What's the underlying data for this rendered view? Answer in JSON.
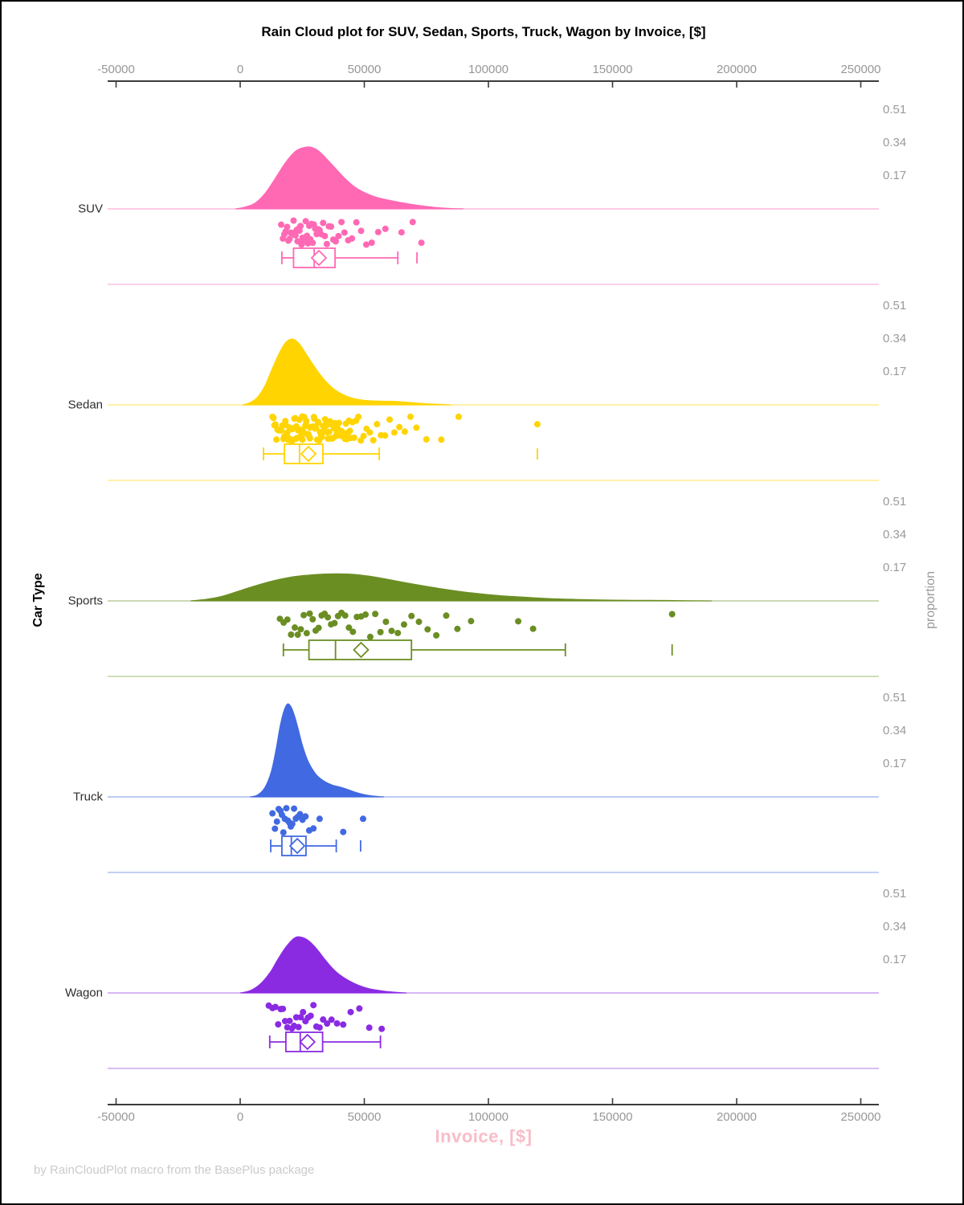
{
  "title": "Rain Cloud plot for SUV, Sedan, Sports, Truck, Wagon by Invoice, [$]",
  "footer": "by RainCloudPlot macro from the BasePlus package",
  "x_axis": {
    "label": "Invoice, [$]",
    "label_color": "#f9bcc8",
    "tick_values": [
      -50000,
      0,
      50000,
      100000,
      150000,
      200000,
      250000
    ],
    "tick_labels": [
      "-50000",
      "0",
      "50000",
      "100000",
      "150000",
      "200000",
      "250000"
    ]
  },
  "y_axis_left": {
    "label": "Car Type"
  },
  "y_axis_right": {
    "label": "proportion",
    "tick_values": [
      0.51,
      0.34,
      0.17
    ],
    "tick_labels": [
      "0.51",
      "0.34",
      "0.17"
    ]
  },
  "chart_data": {
    "type": "raincloud (half-violin density + jitter rain points + box plot) per category",
    "xlabel": "Invoice, [$]",
    "ylabel": "Car Type",
    "x_range": [
      -50000,
      250000
    ],
    "proportion_ticks_per_panel": [
      0.51,
      0.34,
      0.17
    ],
    "categories": [
      "SUV",
      "Sedan",
      "Sports",
      "Truck",
      "Wagon"
    ],
    "groups": [
      {
        "label": "SUV",
        "color": "#FF69B4",
        "density": [
          [
            -2000,
            0
          ],
          [
            2000,
            0.01
          ],
          [
            6000,
            0.03
          ],
          [
            10000,
            0.08
          ],
          [
            14000,
            0.155
          ],
          [
            18000,
            0.235
          ],
          [
            22000,
            0.295
          ],
          [
            25000,
            0.315
          ],
          [
            28000,
            0.32
          ],
          [
            31000,
            0.305
          ],
          [
            34000,
            0.27
          ],
          [
            38000,
            0.215
          ],
          [
            42000,
            0.16
          ],
          [
            46000,
            0.115
          ],
          [
            50000,
            0.085
          ],
          [
            55000,
            0.06
          ],
          [
            60000,
            0.045
          ],
          [
            65000,
            0.032
          ],
          [
            70000,
            0.022
          ],
          [
            75000,
            0.013
          ],
          [
            80000,
            0.006
          ],
          [
            85000,
            0.002
          ],
          [
            90000,
            0
          ]
        ],
        "points": [
          16500,
          17200,
          17800,
          18300,
          18900,
          19400,
          19900,
          20300,
          20700,
          21100,
          21500,
          21900,
          22300,
          22700,
          23100,
          23500,
          23900,
          24300,
          24700,
          25100,
          25500,
          26000,
          26400,
          26900,
          27300,
          27800,
          28200,
          28700,
          29200,
          29700,
          30200,
          30800,
          31400,
          32000,
          32700,
          33400,
          34100,
          34900,
          35700,
          36600,
          37500,
          38500,
          39600,
          40800,
          42000,
          43500,
          45000,
          46800,
          48700,
          50800,
          53000,
          55600,
          58500,
          65000,
          69500,
          73000
        ],
        "box": {
          "whisker_low": 16800,
          "q1": 21500,
          "median": 29800,
          "mean": 31700,
          "q3": 38200,
          "whisker_high": 63500,
          "outliers": [
            71200
          ]
        }
      },
      {
        "label": "Sedan",
        "color": "#FFD400",
        "density": [
          [
            1000,
            0
          ],
          [
            4000,
            0.012
          ],
          [
            7000,
            0.04
          ],
          [
            10000,
            0.1
          ],
          [
            13000,
            0.19
          ],
          [
            16000,
            0.275
          ],
          [
            18500,
            0.325
          ],
          [
            21000,
            0.34
          ],
          [
            23500,
            0.32
          ],
          [
            26000,
            0.275
          ],
          [
            29000,
            0.215
          ],
          [
            32000,
            0.16
          ],
          [
            35000,
            0.115
          ],
          [
            38000,
            0.08
          ],
          [
            42000,
            0.05
          ],
          [
            46000,
            0.032
          ],
          [
            50000,
            0.024
          ],
          [
            55000,
            0.02
          ],
          [
            60000,
            0.019
          ],
          [
            65000,
            0.016
          ],
          [
            70000,
            0.011
          ],
          [
            75000,
            0.006
          ],
          [
            80000,
            0.003
          ],
          [
            85000,
            0
          ]
        ],
        "points": [
          13000,
          13400,
          13800,
          14200,
          14600,
          15000,
          15400,
          15800,
          16200,
          16600,
          17000,
          17400,
          17800,
          18200,
          18600,
          19000,
          19400,
          19800,
          20200,
          20600,
          21000,
          21400,
          21800,
          22200,
          22600,
          23000,
          23400,
          23800,
          24200,
          24600,
          25000,
          25400,
          25800,
          26200,
          26600,
          27000,
          27400,
          27800,
          28200,
          28600,
          29000,
          29400,
          29800,
          30200,
          30600,
          31000,
          31400,
          31800,
          32200,
          32600,
          33000,
          33400,
          33800,
          34200,
          34600,
          35000,
          35400,
          35800,
          36200,
          36600,
          37000,
          37400,
          37800,
          38200,
          38600,
          39000,
          39400,
          39800,
          40200,
          40600,
          41000,
          41400,
          41800,
          42200,
          42600,
          43000,
          43400,
          43800,
          44200,
          44600,
          45200,
          45900,
          46700,
          47600,
          48600,
          49700,
          50900,
          52200,
          53600,
          55100,
          56700,
          58400,
          60200,
          62100,
          64100,
          66300,
          68600,
          71000,
          75000,
          81000,
          88000,
          119700,
          18300,
          19500,
          20900,
          22300,
          23700,
          25100,
          26500,
          28100,
          29700,
          31300,
          32900,
          34500,
          36100,
          37700
        ],
        "box": {
          "whisker_low": 9400,
          "q1": 17800,
          "median": 23900,
          "mean": 27500,
          "q3": 33300,
          "whisker_high": 56000,
          "outliers": [
            119700
          ]
        }
      },
      {
        "label": "Sports",
        "color": "#6B8E23",
        "density": [
          [
            -20000,
            0
          ],
          [
            -14000,
            0.008
          ],
          [
            -8000,
            0.022
          ],
          [
            -2000,
            0.045
          ],
          [
            4000,
            0.07
          ],
          [
            10000,
            0.093
          ],
          [
            16000,
            0.112
          ],
          [
            22000,
            0.126
          ],
          [
            28000,
            0.134
          ],
          [
            34000,
            0.139
          ],
          [
            40000,
            0.14
          ],
          [
            46000,
            0.137
          ],
          [
            52000,
            0.128
          ],
          [
            58000,
            0.115
          ],
          [
            65000,
            0.098
          ],
          [
            72000,
            0.082
          ],
          [
            80000,
            0.065
          ],
          [
            88000,
            0.05
          ],
          [
            96000,
            0.038
          ],
          [
            105000,
            0.027
          ],
          [
            115000,
            0.019
          ],
          [
            125000,
            0.012
          ],
          [
            135000,
            0.008
          ],
          [
            145000,
            0.005
          ],
          [
            155000,
            0.0035
          ],
          [
            165000,
            0.003
          ],
          [
            172000,
            0.0025
          ],
          [
            180000,
            0.001
          ],
          [
            190000,
            0
          ]
        ],
        "points": [
          16000,
          17500,
          19000,
          20500,
          22000,
          23200,
          24400,
          25600,
          26800,
          28000,
          29200,
          30400,
          31600,
          32800,
          34000,
          35300,
          36600,
          38000,
          39400,
          40800,
          42300,
          43800,
          45400,
          47000,
          48700,
          50500,
          52400,
          54400,
          56500,
          58700,
          61000,
          63500,
          66000,
          69000,
          72000,
          75500,
          79000,
          83000,
          87500,
          93000,
          112000,
          118000,
          174000
        ],
        "box": {
          "whisker_low": 17400,
          "q1": 27700,
          "median": 38400,
          "mean": 48700,
          "q3": 69000,
          "whisker_high": 131000,
          "outliers": [
            174000
          ]
        }
      },
      {
        "label": "Truck",
        "color": "#4169E1",
        "density": [
          [
            4000,
            0
          ],
          [
            7000,
            0.01
          ],
          [
            10000,
            0.05
          ],
          [
            12500,
            0.13
          ],
          [
            14500,
            0.25
          ],
          [
            16000,
            0.36
          ],
          [
            17500,
            0.44
          ],
          [
            19000,
            0.48
          ],
          [
            20500,
            0.465
          ],
          [
            22000,
            0.415
          ],
          [
            23500,
            0.345
          ],
          [
            25000,
            0.27
          ],
          [
            27000,
            0.195
          ],
          [
            29000,
            0.145
          ],
          [
            31000,
            0.11
          ],
          [
            34000,
            0.08
          ],
          [
            37000,
            0.062
          ],
          [
            40000,
            0.052
          ],
          [
            43000,
            0.04
          ],
          [
            46000,
            0.026
          ],
          [
            50000,
            0.012
          ],
          [
            54000,
            0.004
          ],
          [
            58000,
            0
          ]
        ],
        "points": [
          13000,
          14000,
          14800,
          15500,
          16200,
          16800,
          17400,
          18000,
          18600,
          19200,
          19800,
          20400,
          21000,
          21700,
          22400,
          23200,
          24100,
          25100,
          26300,
          27800,
          29500,
          32000,
          41500,
          49500
        ],
        "box": {
          "whisker_low": 12300,
          "q1": 16800,
          "median": 20600,
          "mean": 23000,
          "q3": 26500,
          "whisker_high": 38700,
          "outliers": [
            48500
          ]
        }
      },
      {
        "label": "Wagon",
        "color": "#8A2BE2",
        "density": [
          [
            0,
            0
          ],
          [
            4000,
            0.012
          ],
          [
            8000,
            0.045
          ],
          [
            12000,
            0.105
          ],
          [
            15000,
            0.17
          ],
          [
            18000,
            0.23
          ],
          [
            21000,
            0.275
          ],
          [
            23000,
            0.29
          ],
          [
            25500,
            0.285
          ],
          [
            28000,
            0.265
          ],
          [
            31000,
            0.225
          ],
          [
            34000,
            0.175
          ],
          [
            37000,
            0.13
          ],
          [
            40000,
            0.095
          ],
          [
            44000,
            0.062
          ],
          [
            48000,
            0.038
          ],
          [
            52000,
            0.022
          ],
          [
            57000,
            0.011
          ],
          [
            62000,
            0.004
          ],
          [
            67000,
            0
          ]
        ],
        "points": [
          11500,
          13000,
          14200,
          15300,
          16300,
          17200,
          18100,
          19000,
          19900,
          20800,
          21700,
          22600,
          23500,
          24400,
          25300,
          26300,
          27300,
          28400,
          29500,
          30700,
          32000,
          33400,
          35000,
          36800,
          39000,
          41500,
          44500,
          48000,
          52000,
          57000
        ],
        "box": {
          "whisker_low": 11900,
          "q1": 18400,
          "median": 24200,
          "mean": 27100,
          "q3": 33200,
          "whisker_high": 56500,
          "outliers": []
        }
      }
    ]
  }
}
